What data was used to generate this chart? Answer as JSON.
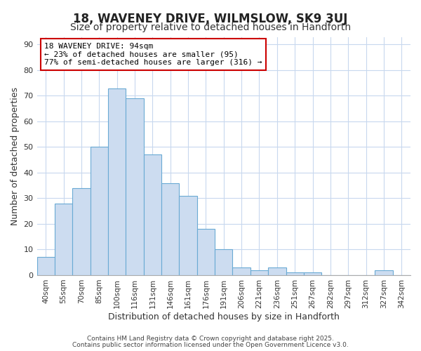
{
  "title_line1": "18, WAVENEY DRIVE, WILMSLOW, SK9 3UJ",
  "title_line2": "Size of property relative to detached houses in Handforth",
  "xlabel": "Distribution of detached houses by size in Handforth",
  "ylabel": "Number of detached properties",
  "categories": [
    "40sqm",
    "55sqm",
    "70sqm",
    "85sqm",
    "100sqm",
    "116sqm",
    "131sqm",
    "146sqm",
    "161sqm",
    "176sqm",
    "191sqm",
    "206sqm",
    "221sqm",
    "236sqm",
    "251sqm",
    "267sqm",
    "282sqm",
    "297sqm",
    "312sqm",
    "327sqm",
    "342sqm"
  ],
  "values": [
    7,
    28,
    34,
    50,
    73,
    69,
    47,
    36,
    31,
    18,
    10,
    3,
    2,
    3,
    1,
    1,
    0,
    0,
    0,
    2,
    0
  ],
  "bar_color": "#ccdcf0",
  "bar_edge_color": "#6aaad4",
  "background_color": "#ffffff",
  "plot_bg_color": "#ffffff",
  "grid_color": "#c8d8ee",
  "ylim": [
    0,
    93
  ],
  "yticks": [
    0,
    10,
    20,
    30,
    40,
    50,
    60,
    70,
    80,
    90
  ],
  "annotation_text": "18 WAVENEY DRIVE: 94sqm\n← 23% of detached houses are smaller (95)\n77% of semi-detached houses are larger (316) →",
  "annotation_box_color": "#ffffff",
  "annotation_box_edge": "#cc0000",
  "footnote1": "Contains HM Land Registry data © Crown copyright and database right 2025.",
  "footnote2": "Contains public sector information licensed under the Open Government Licence v3.0.",
  "title_fontsize": 12,
  "subtitle_fontsize": 10,
  "ylabel_fontsize": 9,
  "xlabel_fontsize": 9
}
